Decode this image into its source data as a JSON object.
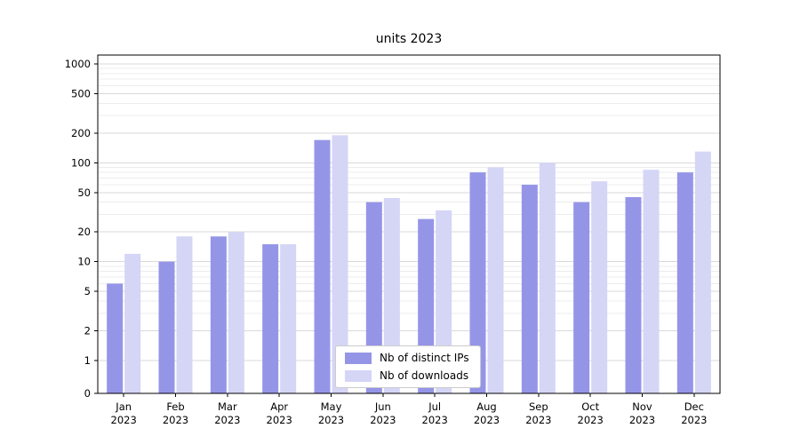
{
  "chart_data": {
    "type": "bar",
    "title": "units 2023",
    "categories": [
      "Jan 2023",
      "Feb 2023",
      "Mar 2023",
      "Apr 2023",
      "May 2023",
      "Jun 2023",
      "Jul 2023",
      "Aug 2023",
      "Sep 2023",
      "Oct 2023",
      "Nov 2023",
      "Dec 2023"
    ],
    "series": [
      {
        "name": "Nb of distinct IPs",
        "color": "#9595e8",
        "values": [
          6,
          10,
          18,
          15,
          170,
          40,
          27,
          80,
          60,
          40,
          45,
          80
        ]
      },
      {
        "name": "Nb of downloads",
        "color": "#d5d5f6",
        "values": [
          12,
          18,
          20,
          15,
          190,
          44,
          33,
          90,
          100,
          65,
          85,
          130
        ]
      }
    ],
    "yscale": "symlog",
    "yticks": [
      0,
      1,
      2,
      5,
      10,
      20,
      50,
      100,
      200,
      500,
      1000
    ],
    "ylim": [
      0,
      1200
    ],
    "xlabel": "",
    "ylabel": "",
    "grid": "horizontal",
    "legend_position": "lower center",
    "colors": {
      "grid_major": "#d9d9d9",
      "grid_minor": "#ececec",
      "axis": "#000000",
      "background": "#ffffff"
    }
  }
}
